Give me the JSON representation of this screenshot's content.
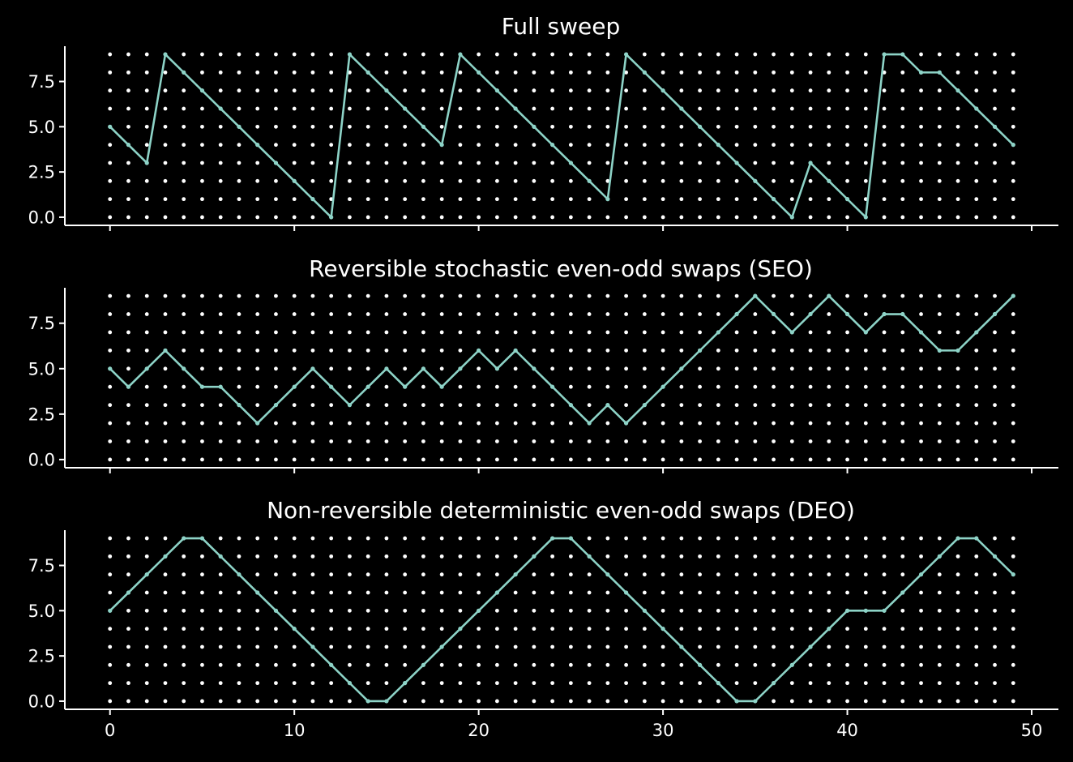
{
  "chart_data": [
    {
      "type": "line",
      "title": "Full sweep",
      "xlabel": "",
      "ylabel": "",
      "xlim": [
        -2.45,
        51.45
      ],
      "ylim": [
        -0.45,
        9.45
      ],
      "xticks": [
        0,
        10,
        20,
        30,
        40,
        50
      ],
      "xtick_labels_visible": false,
      "yticks": [
        0.0,
        2.5,
        5.0,
        7.5
      ],
      "ytick_labels": [
        "0.0",
        "2.5",
        "5.0",
        "7.5"
      ],
      "grid_points": {
        "x_range": [
          0,
          49
        ],
        "y_range": [
          0,
          9
        ],
        "color": "#ffffff"
      },
      "line_color": "#8dd3c7",
      "x": [
        0,
        1,
        2,
        3,
        4,
        5,
        6,
        7,
        8,
        9,
        10,
        11,
        12,
        13,
        14,
        15,
        16,
        17,
        18,
        19,
        20,
        21,
        22,
        23,
        24,
        25,
        26,
        27,
        28,
        29,
        30,
        31,
        32,
        33,
        34,
        35,
        36,
        37,
        38,
        39,
        40,
        41,
        42,
        43,
        44,
        45,
        46,
        47,
        48,
        49
      ],
      "values": [
        5,
        4,
        3,
        9,
        8,
        7,
        6,
        5,
        4,
        3,
        2,
        1,
        0,
        9,
        8,
        7,
        6,
        5,
        4,
        9,
        8,
        7,
        6,
        5,
        4,
        3,
        2,
        1,
        9,
        8,
        7,
        6,
        5,
        4,
        3,
        2,
        1,
        0,
        3,
        2,
        1,
        0,
        9,
        9,
        8,
        8,
        7,
        6,
        5,
        4
      ]
    },
    {
      "type": "line",
      "title": "Reversible stochastic even-odd swaps (SEO)",
      "xlabel": "",
      "ylabel": "",
      "xlim": [
        -2.45,
        51.45
      ],
      "ylim": [
        -0.45,
        9.45
      ],
      "xticks": [
        0,
        10,
        20,
        30,
        40,
        50
      ],
      "xtick_labels_visible": false,
      "yticks": [
        0.0,
        2.5,
        5.0,
        7.5
      ],
      "ytick_labels": [
        "0.0",
        "2.5",
        "5.0",
        "7.5"
      ],
      "grid_points": {
        "x_range": [
          0,
          49
        ],
        "y_range": [
          0,
          9
        ],
        "color": "#ffffff"
      },
      "line_color": "#8dd3c7",
      "x": [
        0,
        1,
        2,
        3,
        4,
        5,
        6,
        7,
        8,
        9,
        10,
        11,
        12,
        13,
        14,
        15,
        16,
        17,
        18,
        19,
        20,
        21,
        22,
        23,
        24,
        25,
        26,
        27,
        28,
        29,
        30,
        31,
        32,
        33,
        34,
        35,
        36,
        37,
        38,
        39,
        40,
        41,
        42,
        43,
        44,
        45,
        46,
        47,
        48,
        49
      ],
      "values": [
        5,
        4,
        5,
        6,
        5,
        4,
        4,
        3,
        2,
        3,
        4,
        5,
        4,
        3,
        4,
        5,
        4,
        5,
        4,
        5,
        6,
        5,
        6,
        5,
        4,
        3,
        2,
        3,
        2,
        3,
        4,
        5,
        6,
        7,
        8,
        9,
        8,
        7,
        8,
        9,
        8,
        7,
        8,
        8,
        7,
        6,
        6,
        7,
        8,
        9
      ]
    },
    {
      "type": "line",
      "title": "Non-reversible deterministic even-odd swaps (DEO)",
      "xlabel": "",
      "ylabel": "",
      "xlim": [
        -2.45,
        51.45
      ],
      "ylim": [
        -0.45,
        9.45
      ],
      "xticks": [
        0,
        10,
        20,
        30,
        40,
        50
      ],
      "xtick_labels_visible": true,
      "xtick_labels": [
        "0",
        "10",
        "20",
        "30",
        "40",
        "50"
      ],
      "yticks": [
        0.0,
        2.5,
        5.0,
        7.5
      ],
      "ytick_labels": [
        "0.0",
        "2.5",
        "5.0",
        "7.5"
      ],
      "grid_points": {
        "x_range": [
          0,
          49
        ],
        "y_range": [
          0,
          9
        ],
        "color": "#ffffff"
      },
      "line_color": "#8dd3c7",
      "x": [
        0,
        1,
        2,
        3,
        4,
        5,
        6,
        7,
        8,
        9,
        10,
        11,
        12,
        13,
        14,
        15,
        16,
        17,
        18,
        19,
        20,
        21,
        22,
        23,
        24,
        25,
        26,
        27,
        28,
        29,
        30,
        31,
        32,
        33,
        34,
        35,
        36,
        37,
        38,
        39,
        40,
        41,
        42,
        43,
        44,
        45,
        46,
        47,
        48,
        49
      ],
      "values": [
        5,
        6,
        7,
        8,
        9,
        9,
        8,
        7,
        6,
        5,
        4,
        3,
        2,
        1,
        0,
        0,
        1,
        2,
        3,
        4,
        5,
        6,
        7,
        8,
        9,
        9,
        8,
        7,
        6,
        5,
        4,
        3,
        2,
        1,
        0,
        0,
        1,
        2,
        3,
        4,
        5,
        5,
        5,
        6,
        7,
        8,
        9,
        9,
        8,
        7
      ]
    }
  ]
}
